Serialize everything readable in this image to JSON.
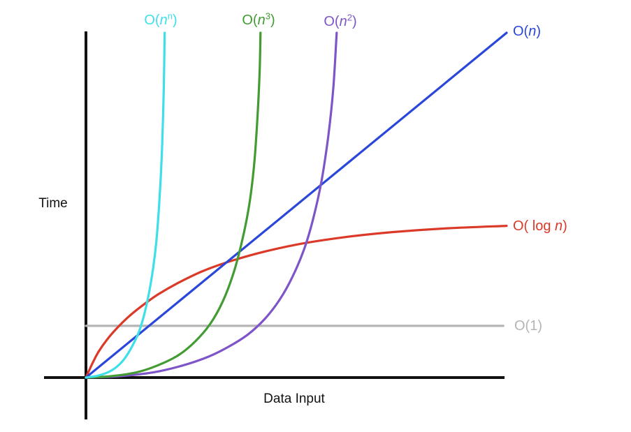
{
  "chart_data": {
    "type": "line",
    "title": "",
    "xlabel": "Data Input",
    "ylabel": "Time",
    "x_range": [
      0,
      100
    ],
    "y_range": [
      0,
      100
    ],
    "grid": false,
    "legend_position": "inline-curve-labels",
    "series": [
      {
        "name": "O(n^n)",
        "color": "#3EDFE8",
        "points": [
          [
            0,
            0
          ],
          [
            3,
            0.6
          ],
          [
            6,
            2
          ],
          [
            8.5,
            4.5
          ],
          [
            10.5,
            8
          ],
          [
            12.5,
            13
          ],
          [
            14,
            19
          ],
          [
            15.5,
            28
          ],
          [
            16.7,
            39
          ],
          [
            17.5,
            52
          ],
          [
            18.1,
            67
          ],
          [
            18.5,
            84
          ],
          [
            18.7,
            100
          ]
        ]
      },
      {
        "name": "O(n^3)",
        "color": "#429B33",
        "points": [
          [
            0,
            0
          ],
          [
            6,
            0.4
          ],
          [
            12,
            1.5
          ],
          [
            17,
            3.5
          ],
          [
            22,
            6.5
          ],
          [
            26,
            10.5
          ],
          [
            29.5,
            15.5
          ],
          [
            32.5,
            22
          ],
          [
            35,
            30
          ],
          [
            37,
            39
          ],
          [
            38.8,
            50
          ],
          [
            40,
            62
          ],
          [
            40.8,
            76
          ],
          [
            41.3,
            89
          ],
          [
            41.5,
            100
          ]
        ]
      },
      {
        "name": "O(n^2)",
        "color": "#7E55C8",
        "points": [
          [
            0,
            0
          ],
          [
            8,
            0.4
          ],
          [
            16,
            1.5
          ],
          [
            23,
            3.5
          ],
          [
            29,
            6
          ],
          [
            34,
            9
          ],
          [
            38.5,
            12.5
          ],
          [
            42.5,
            17
          ],
          [
            46,
            22.5
          ],
          [
            49,
            29
          ],
          [
            51.8,
            37
          ],
          [
            54,
            46
          ],
          [
            56,
            57
          ],
          [
            57.6,
            70
          ],
          [
            58.8,
            84
          ],
          [
            59.6,
            100
          ]
        ]
      },
      {
        "name": "O(n)",
        "color": "#2A47D9",
        "points": [
          [
            0,
            0
          ],
          [
            100,
            100
          ]
        ]
      },
      {
        "name": "O(log n)",
        "color": "#DB3A28",
        "points": [
          [
            0,
            0
          ],
          [
            1.5,
            4
          ],
          [
            3,
            7.5
          ],
          [
            5,
            11
          ],
          [
            7.5,
            14.5
          ],
          [
            10,
            17.5
          ],
          [
            13,
            20.5
          ],
          [
            17,
            24
          ],
          [
            22,
            27.5
          ],
          [
            28,
            31
          ],
          [
            35,
            34
          ],
          [
            43,
            36.7
          ],
          [
            52,
            39
          ],
          [
            62,
            40.8
          ],
          [
            73,
            42.2
          ],
          [
            86,
            43.3
          ],
          [
            100,
            44
          ]
        ]
      },
      {
        "name": "O(1)",
        "color": "#B5B5B5",
        "points": [
          [
            0,
            15
          ],
          [
            99.2,
            15
          ]
        ]
      }
    ]
  },
  "labels": {
    "o_nn": {
      "prefix": "O(",
      "base": "n",
      "sup": "n",
      "suffix": ")",
      "color": "#3EDFE8"
    },
    "o_n3": {
      "prefix": "O(",
      "base": "n",
      "sup": "3",
      "suffix": ")",
      "color": "#429B33"
    },
    "o_n2": {
      "prefix": "O(",
      "base": "n",
      "sup": "2",
      "suffix": ")",
      "color": "#7E55C8"
    },
    "o_n": {
      "prefix": "O(",
      "base": "n",
      "suffix": ")",
      "color": "#2A47D9"
    },
    "o_logn": {
      "prefix": "O( log ",
      "base": "n",
      "suffix": ")",
      "color": "#DB3A28"
    },
    "o_1": {
      "text": "O(1)",
      "color": "#B5B5B5"
    }
  }
}
